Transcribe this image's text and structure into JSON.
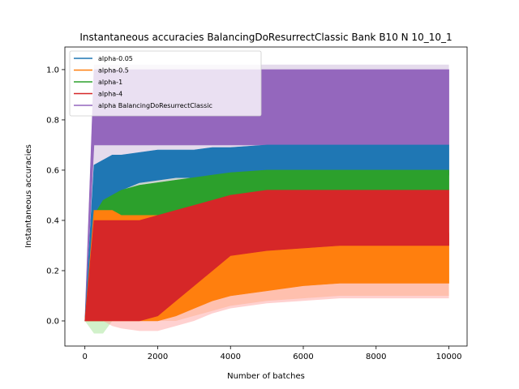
{
  "chart_data": {
    "type": "line",
    "title": "Instantaneous accuracies BalancingDoResurrectClassic Bank B10 N 10_10_1",
    "xlabel": "Number of batches",
    "ylabel": "Instantaneous accuracies",
    "xlim": [
      -550,
      10500
    ],
    "ylim": [
      -0.1,
      1.09
    ],
    "x_ticks": [
      0,
      2000,
      4000,
      6000,
      8000,
      10000
    ],
    "y_ticks": [
      0.0,
      0.2,
      0.4,
      0.6,
      0.8,
      1.0
    ],
    "x_tick_labels": [
      "0",
      "2000",
      "4000",
      "6000",
      "8000",
      "10000"
    ],
    "y_tick_labels": [
      "0.0",
      "0.2",
      "0.4",
      "0.6",
      "0.8",
      "1.0"
    ],
    "grid": false,
    "legend_position": "top-left",
    "x": [
      0,
      250,
      500,
      750,
      1000,
      1500,
      2000,
      2500,
      3000,
      3500,
      4000,
      5000,
      6000,
      7000,
      8000,
      9000,
      10000
    ],
    "series": [
      {
        "name": "alpha-0.05",
        "color": "#1f77b4",
        "band_color": "#aec7e8",
        "lower": [
          0.0,
          0.3,
          0.45,
          0.5,
          0.52,
          0.55,
          0.56,
          0.57,
          0.57,
          0.58,
          0.58,
          0.58,
          0.58,
          0.58,
          0.58,
          0.58,
          0.58
        ],
        "upper": [
          0.0,
          0.62,
          0.64,
          0.66,
          0.66,
          0.67,
          0.68,
          0.68,
          0.68,
          0.69,
          0.69,
          0.7,
          0.7,
          0.7,
          0.7,
          0.7,
          0.7
        ],
        "band_lower": [
          0.0,
          0.4,
          0.46,
          0.5,
          0.52,
          0.55,
          0.56,
          0.57,
          0.57,
          0.57,
          0.57,
          0.57,
          0.57,
          0.57,
          0.57,
          0.57,
          0.57
        ],
        "band_upper": [
          0.0,
          0.55,
          0.56,
          0.57,
          0.58,
          0.59,
          0.6,
          0.6,
          0.6,
          0.6,
          0.6,
          0.6,
          0.6,
          0.6,
          0.6,
          0.6,
          0.6
        ]
      },
      {
        "name": "alpha-0.5",
        "color": "#ff7f0e",
        "band_color": "#ffbb78",
        "lower": [
          0.0,
          0.0,
          0.0,
          0.0,
          0.0,
          0.0,
          0.0,
          0.02,
          0.05,
          0.08,
          0.1,
          0.12,
          0.14,
          0.15,
          0.15,
          0.15,
          0.15
        ],
        "upper": [
          0.0,
          0.44,
          0.44,
          0.44,
          0.42,
          0.42,
          0.42,
          0.42,
          0.42,
          0.4,
          0.4,
          0.38,
          0.36,
          0.35,
          0.35,
          0.35,
          0.35
        ],
        "band_lower": [
          0.0,
          0.0,
          0.0,
          0.0,
          0.0,
          0.0,
          0.0,
          0.0,
          0.02,
          0.04,
          0.06,
          0.08,
          0.09,
          0.1,
          0.1,
          0.1,
          0.1
        ],
        "band_upper": [
          0.0,
          0.36,
          0.38,
          0.38,
          0.38,
          0.37,
          0.36,
          0.35,
          0.33,
          0.32,
          0.31,
          0.3,
          0.3,
          0.29,
          0.29,
          0.29,
          0.29
        ]
      },
      {
        "name": "alpha-1",
        "color": "#2ca02c",
        "band_color": "#98df8a",
        "lower": [
          0.0,
          0.0,
          0.0,
          0.05,
          0.1,
          0.2,
          0.3,
          0.38,
          0.42,
          0.46,
          0.48,
          0.5,
          0.51,
          0.52,
          0.52,
          0.52,
          0.52
        ],
        "upper": [
          0.0,
          0.42,
          0.48,
          0.5,
          0.52,
          0.54,
          0.55,
          0.56,
          0.57,
          0.58,
          0.59,
          0.6,
          0.6,
          0.6,
          0.6,
          0.6,
          0.6
        ],
        "band_lower": [
          0.0,
          -0.05,
          -0.05,
          0.0,
          0.05,
          0.15,
          0.25,
          0.33,
          0.38,
          0.42,
          0.45,
          0.47,
          0.48,
          0.49,
          0.49,
          0.49,
          0.49
        ],
        "band_upper": [
          0.0,
          0.45,
          0.5,
          0.52,
          0.54,
          0.56,
          0.57,
          0.58,
          0.58,
          0.59,
          0.6,
          0.6,
          0.6,
          0.6,
          0.6,
          0.6,
          0.6
        ]
      },
      {
        "name": "alpha-4",
        "color": "#d62728",
        "band_color": "#ff9896",
        "lower": [
          0.0,
          0.0,
          0.0,
          0.0,
          0.0,
          0.0,
          0.02,
          0.08,
          0.14,
          0.2,
          0.26,
          0.28,
          0.29,
          0.3,
          0.3,
          0.3,
          0.3
        ],
        "upper": [
          0.0,
          0.4,
          0.4,
          0.4,
          0.4,
          0.4,
          0.42,
          0.44,
          0.46,
          0.48,
          0.5,
          0.52,
          0.52,
          0.52,
          0.52,
          0.52,
          0.52
        ],
        "band_lower": [
          0.0,
          0.0,
          0.0,
          -0.02,
          -0.03,
          -0.04,
          -0.04,
          -0.02,
          0.0,
          0.03,
          0.05,
          0.07,
          0.08,
          0.09,
          0.09,
          0.09,
          0.09
        ],
        "band_upper": [
          0.0,
          0.35,
          0.36,
          0.38,
          0.4,
          0.42,
          0.44,
          0.46,
          0.47,
          0.48,
          0.5,
          0.52,
          0.52,
          0.52,
          0.52,
          0.52,
          0.52
        ]
      },
      {
        "name": "alpha BalancingDoResurrectClassic",
        "color": "#9467bd",
        "band_color": "#c5b0d5",
        "lower": [
          0.0,
          0.7,
          0.7,
          0.7,
          0.7,
          0.7,
          0.7,
          0.7,
          0.7,
          0.7,
          0.7,
          0.7,
          0.7,
          0.7,
          0.7,
          0.7,
          0.7
        ],
        "upper": [
          0.0,
          1.0,
          1.0,
          1.0,
          1.0,
          1.0,
          1.0,
          1.0,
          1.0,
          1.0,
          1.0,
          1.0,
          1.0,
          1.0,
          1.0,
          1.0,
          1.0
        ],
        "band_lower": [
          0.0,
          0.5,
          0.5,
          0.5,
          0.5,
          0.5,
          0.5,
          0.5,
          0.5,
          0.5,
          0.5,
          0.5,
          0.5,
          0.5,
          0.5,
          0.5,
          0.5
        ],
        "band_upper": [
          0.0,
          1.02,
          1.02,
          1.02,
          1.02,
          1.02,
          1.02,
          1.02,
          1.02,
          1.02,
          1.02,
          1.02,
          1.02,
          1.02,
          1.02,
          1.02,
          1.02
        ]
      }
    ]
  }
}
